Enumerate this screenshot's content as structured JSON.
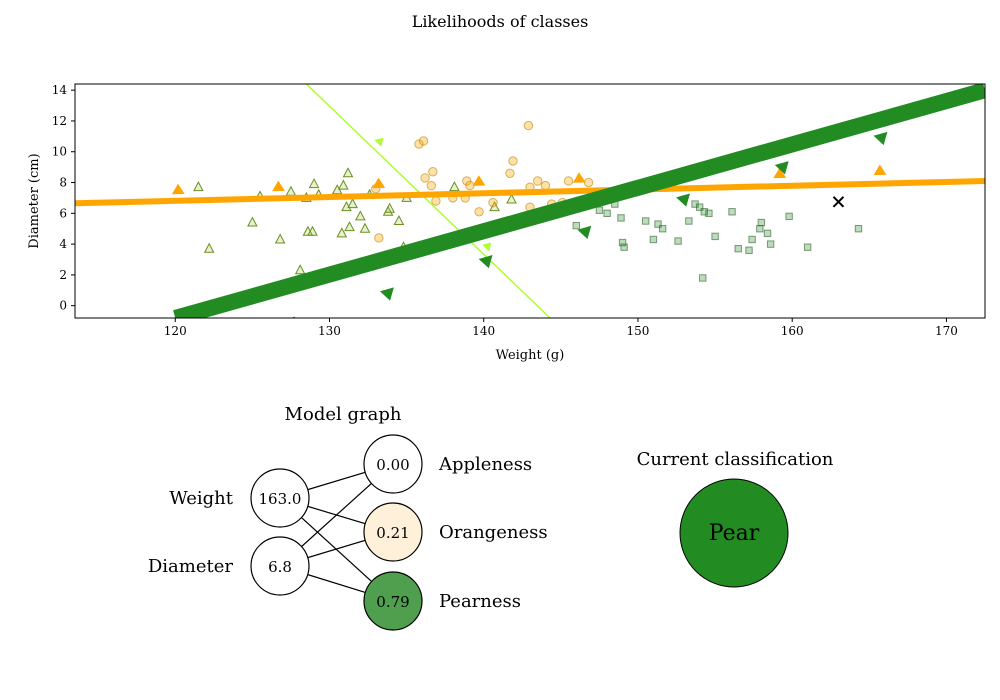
{
  "title": "Likelihoods of classes",
  "chart_data": {
    "type": "scatter",
    "xlabel": "Weight (g)",
    "ylabel": "Diameter (cm)",
    "xlim": [
      113.5,
      172.5
    ],
    "ylim": [
      -0.8,
      14.4
    ],
    "xticks": [
      120,
      130,
      140,
      150,
      160,
      170
    ],
    "yticks": [
      0,
      2,
      4,
      6,
      8,
      10,
      12,
      14
    ],
    "grid": false,
    "series": [
      {
        "marker": "triangle",
        "color": "#9acd32",
        "points": [
          [
            121.5,
            7.7
          ],
          [
            122.2,
            3.7
          ],
          [
            125,
            5.4
          ],
          [
            125.5,
            7.1
          ],
          [
            126.8,
            4.3
          ],
          [
            127.5,
            7.4
          ],
          [
            128.1,
            2.3
          ],
          [
            128.5,
            7.0
          ],
          [
            128.6,
            4.8
          ],
          [
            128.9,
            4.8
          ],
          [
            129,
            7.9
          ],
          [
            129.3,
            7.2
          ],
          [
            130.5,
            7.5
          ],
          [
            130.8,
            4.7
          ],
          [
            130.9,
            7.8
          ],
          [
            131.1,
            6.4
          ],
          [
            131.2,
            8.6
          ],
          [
            131.3,
            5.1
          ],
          [
            131.5,
            6.6
          ],
          [
            132,
            5.8
          ],
          [
            132.3,
            5.0
          ],
          [
            132.6,
            7.2
          ],
          [
            133.8,
            6.1
          ],
          [
            133.9,
            6.3
          ],
          [
            134.5,
            5.5
          ],
          [
            134.8,
            3.8
          ],
          [
            135,
            7.0
          ],
          [
            138.1,
            7.7
          ],
          [
            140.7,
            6.4
          ],
          [
            141.8,
            6.9
          ]
        ]
      },
      {
        "marker": "circle",
        "color": "#ffa500",
        "points": [
          [
            133,
            7.6
          ],
          [
            133.2,
            4.4
          ],
          [
            135.8,
            10.5
          ],
          [
            136.1,
            10.7
          ],
          [
            136.2,
            8.3
          ],
          [
            136.6,
            7.8
          ],
          [
            136.7,
            8.7
          ],
          [
            136.9,
            6.8
          ],
          [
            138,
            7.0
          ],
          [
            138.8,
            7.0
          ],
          [
            138.9,
            8.1
          ],
          [
            139.1,
            7.8
          ],
          [
            139.7,
            6.1
          ],
          [
            140.6,
            6.7
          ],
          [
            141.7,
            8.6
          ],
          [
            141.9,
            9.4
          ],
          [
            142.9,
            11.7
          ],
          [
            143,
            6.4
          ],
          [
            143,
            7.7
          ],
          [
            143.5,
            8.1
          ],
          [
            144,
            7.8
          ],
          [
            144.4,
            6.6
          ],
          [
            145.1,
            6.7
          ],
          [
            145.5,
            8.1
          ],
          [
            146.5,
            6.8
          ],
          [
            146.8,
            8.0
          ]
        ]
      },
      {
        "marker": "square",
        "color": "#228b22",
        "points": [
          [
            146,
            5.2
          ],
          [
            147.5,
            6.2
          ],
          [
            148,
            6.0
          ],
          [
            148.5,
            6.6
          ],
          [
            148.9,
            5.7
          ],
          [
            149,
            4.1
          ],
          [
            149.1,
            3.8
          ],
          [
            150.5,
            5.5
          ],
          [
            151,
            4.3
          ],
          [
            151.3,
            5.3
          ],
          [
            151.6,
            5.0
          ],
          [
            152.6,
            4.2
          ],
          [
            153.3,
            5.5
          ],
          [
            153.7,
            6.6
          ],
          [
            154,
            6.4
          ],
          [
            154.2,
            1.8
          ],
          [
            154.3,
            6.1
          ],
          [
            154.6,
            6.0
          ],
          [
            155,
            4.5
          ],
          [
            156.1,
            6.1
          ],
          [
            156.5,
            3.7
          ],
          [
            157.2,
            3.6
          ],
          [
            157.4,
            4.3
          ],
          [
            157.9,
            5.0
          ],
          [
            158,
            5.4
          ],
          [
            158.4,
            4.7
          ],
          [
            158.6,
            4.0
          ],
          [
            159.8,
            5.8
          ],
          [
            161,
            3.8
          ],
          [
            164.3,
            5.0
          ]
        ]
      }
    ],
    "lines": [
      {
        "color": "#adff2f",
        "points": [
          [
            128.5,
            14.4
          ],
          [
            144.3,
            -0.8
          ]
        ],
        "arrows": [
          [
            133.0,
            10.4
          ],
          [
            140.0,
            3.6
          ]
        ]
      },
      {
        "color": "#ffa500",
        "points": [
          [
            113.5,
            6.65
          ],
          [
            172.5,
            8.1
          ]
        ],
        "arrows": [
          [
            120.2,
            7.05
          ],
          [
            126.7,
            7.25
          ],
          [
            133.2,
            7.45
          ],
          [
            139.7,
            7.6
          ],
          [
            146.2,
            7.8
          ],
          [
            152.7,
            7.95
          ],
          [
            159.2,
            8.1
          ],
          [
            165.7,
            8.3
          ]
        ]
      },
      {
        "color": "#228b22",
        "points": [
          [
            120,
            -0.8
          ],
          [
            172.5,
            14.0
          ]
        ],
        "arrows": [
          [
            127.2,
            -0.4
          ],
          [
            133.6,
            1.5
          ],
          [
            140,
            3.6
          ],
          [
            146.4,
            5.5
          ],
          [
            152.8,
            7.6
          ],
          [
            159.2,
            9.7
          ],
          [
            165.6,
            11.6
          ]
        ]
      }
    ],
    "current_point": [
      163,
      6.75
    ]
  },
  "graph": {
    "title": "Model graph",
    "inputs": [
      {
        "label": "Weight",
        "value": "163.0",
        "fill": "#ffffff"
      },
      {
        "label": "Diameter",
        "value": "6.8",
        "fill": "#ffffff"
      }
    ],
    "outputs": [
      {
        "label": "Appleness",
        "value": "0.00",
        "fill": "#ffffff"
      },
      {
        "label": "Orangeness",
        "value": "0.21",
        "fill": "#fff1d9"
      },
      {
        "label": "Pearness",
        "value": "0.79",
        "fill": "#4f9f4f"
      }
    ]
  },
  "classification": {
    "title": "Current classification",
    "label": "Pear",
    "color": "#228b22"
  }
}
